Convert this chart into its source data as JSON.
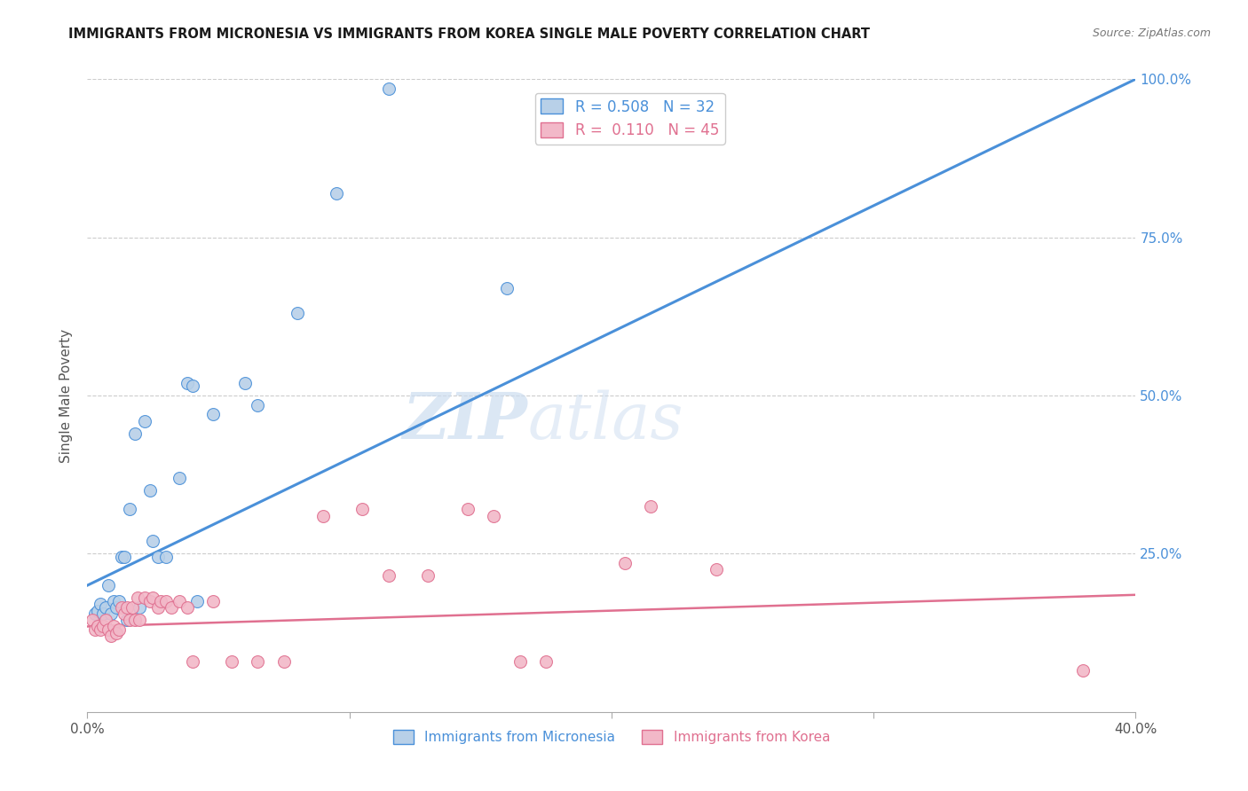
{
  "title": "IMMIGRANTS FROM MICRONESIA VS IMMIGRANTS FROM KOREA SINGLE MALE POVERTY CORRELATION CHART",
  "source": "Source: ZipAtlas.com",
  "ylabel": "Single Male Poverty",
  "xlim": [
    0.0,
    0.4
  ],
  "ylim": [
    0.0,
    1.0
  ],
  "micronesia_color": "#b8d0e8",
  "korea_color": "#f2b8c8",
  "trendline_micronesia_color": "#4a90d9",
  "trendline_korea_color": "#e07090",
  "R_micronesia": 0.508,
  "N_micronesia": 32,
  "R_korea": 0.11,
  "N_korea": 45,
  "watermark_zip": "ZIP",
  "watermark_atlas": "atlas",
  "trendline_mic_x0": 0.0,
  "trendline_mic_y0": 0.2,
  "trendline_mic_x1": 0.4,
  "trendline_mic_y1": 1.0,
  "trendline_kor_x0": 0.0,
  "trendline_kor_y0": 0.135,
  "trendline_kor_x1": 0.4,
  "trendline_kor_y1": 0.185,
  "micronesia_x": [
    0.003,
    0.004,
    0.005,
    0.006,
    0.007,
    0.008,
    0.009,
    0.01,
    0.011,
    0.012,
    0.013,
    0.014,
    0.015,
    0.016,
    0.018,
    0.02,
    0.022,
    0.024,
    0.025,
    0.027,
    0.03,
    0.035,
    0.038,
    0.04,
    0.042,
    0.048,
    0.06,
    0.065,
    0.08,
    0.095,
    0.115,
    0.16
  ],
  "micronesia_y": [
    0.155,
    0.16,
    0.17,
    0.155,
    0.165,
    0.2,
    0.155,
    0.175,
    0.165,
    0.175,
    0.245,
    0.245,
    0.145,
    0.32,
    0.44,
    0.165,
    0.46,
    0.35,
    0.27,
    0.245,
    0.245,
    0.37,
    0.52,
    0.515,
    0.175,
    0.47,
    0.52,
    0.485,
    0.63,
    0.82,
    0.985,
    0.67
  ],
  "korea_x": [
    0.002,
    0.003,
    0.004,
    0.005,
    0.006,
    0.007,
    0.008,
    0.009,
    0.01,
    0.011,
    0.012,
    0.013,
    0.014,
    0.015,
    0.016,
    0.017,
    0.018,
    0.019,
    0.02,
    0.022,
    0.024,
    0.025,
    0.027,
    0.028,
    0.03,
    0.032,
    0.035,
    0.038,
    0.04,
    0.048,
    0.055,
    0.065,
    0.075,
    0.09,
    0.105,
    0.115,
    0.13,
    0.145,
    0.155,
    0.165,
    0.175,
    0.205,
    0.215,
    0.24,
    0.38
  ],
  "korea_y": [
    0.145,
    0.13,
    0.135,
    0.13,
    0.135,
    0.145,
    0.13,
    0.12,
    0.135,
    0.125,
    0.13,
    0.165,
    0.155,
    0.165,
    0.145,
    0.165,
    0.145,
    0.18,
    0.145,
    0.18,
    0.175,
    0.18,
    0.165,
    0.175,
    0.175,
    0.165,
    0.175,
    0.165,
    0.08,
    0.175,
    0.08,
    0.08,
    0.08,
    0.31,
    0.32,
    0.215,
    0.215,
    0.32,
    0.31,
    0.08,
    0.08,
    0.235,
    0.325,
    0.225,
    0.065
  ]
}
